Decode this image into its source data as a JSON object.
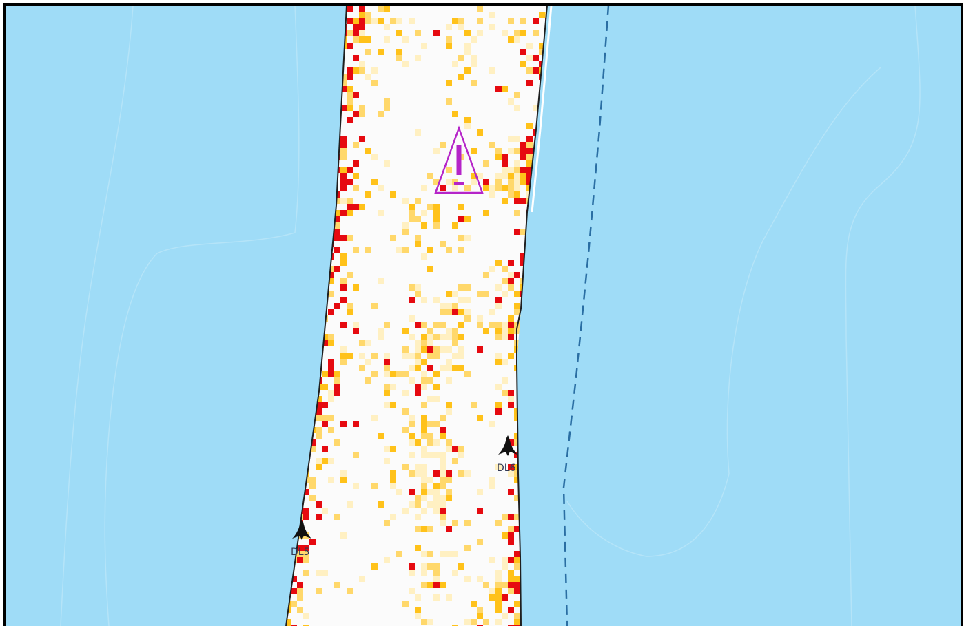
{
  "map": {
    "water_color": "#9fdcf7",
    "land_color": "#fbfbfb",
    "heat_colors": {
      "low": "#fff0c2",
      "mid": "#ffd86b",
      "high": "#ffc21a",
      "peak": "#e60a10"
    },
    "boundary_color": "#1f1f1f",
    "dashed_line_color": "#2a6ea3",
    "warning_marker": {
      "icon": "warning-triangle-icon",
      "color": "#b524c8"
    },
    "markers": [
      {
        "label": "DL6",
        "icon": "beacon-icon"
      },
      {
        "label": "DL5",
        "icon": "beacon-icon"
      }
    ]
  }
}
